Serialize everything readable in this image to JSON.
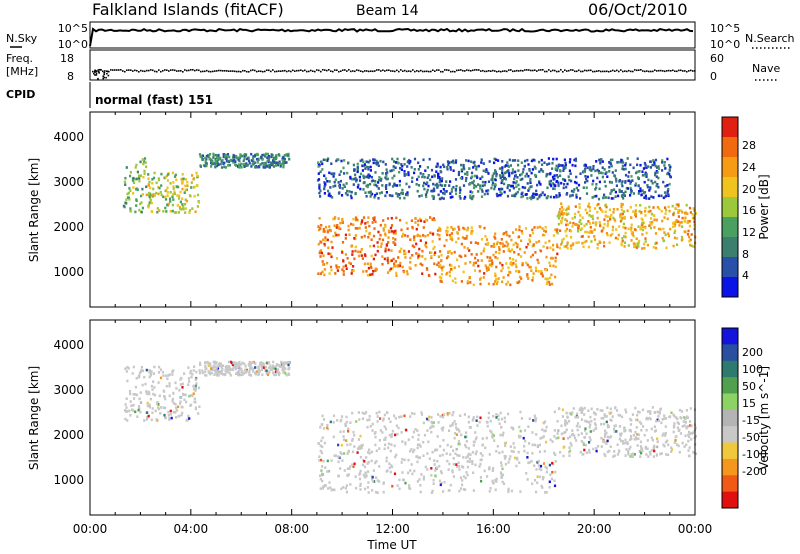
{
  "header": {
    "site": "Falkland Islands (fitACF)",
    "beam": "Beam 14",
    "date": "06/Oct/2010"
  },
  "noise_panel": {
    "left_label": "N.Sky",
    "left_ticks": [
      "10^5",
      "10^0"
    ],
    "right_label": "N.Search",
    "right_ticks": [
      "10^5",
      "10^0"
    ]
  },
  "freq_panel": {
    "left_label_1": "Freq.",
    "left_label_2": "[MHz]",
    "left_ticks": [
      "18",
      "8"
    ],
    "right_label": "Nave",
    "right_ticks": [
      "60",
      "0"
    ]
  },
  "cpid": {
    "label": "CPID",
    "value": "normal (fast) 151"
  },
  "colors": {
    "power_scale": [
      "#0a14e6",
      "#2850a8",
      "#3c7f6e",
      "#4aa060",
      "#9cc83c",
      "#f0c41e",
      "#f59c14",
      "#f06a10",
      "#e02010"
    ],
    "velocity_scale": [
      "#e01010",
      "#f05a14",
      "#f5961e",
      "#f0c83c",
      "#c8c8c8",
      "#b4b4b4",
      "#8cd264",
      "#50a050",
      "#2d7a6e",
      "#284fa0",
      "#1414dc"
    ]
  },
  "chart_data": [
    {
      "type": "heatmap",
      "title": "Power",
      "xlabel": "Time UT",
      "ylabel": "Slant Range [km]",
      "xticks": [
        "00:00",
        "04:00",
        "08:00",
        "12:00",
        "16:00",
        "20:00",
        "00:00"
      ],
      "xlim_hours": [
        0,
        24
      ],
      "yticks": [
        1000,
        2000,
        3000,
        4000
      ],
      "ylim": [
        180,
        4500
      ],
      "colorbar": {
        "label": "Power [dB]",
        "ticks": [
          4,
          8,
          12,
          16,
          20,
          24,
          28
        ],
        "range": [
          0,
          30
        ]
      },
      "echo_regions": [
        {
          "t_start": 1.3,
          "t_end": 2.2,
          "range_low": 2300,
          "range_high": 3500,
          "mean_power": 12
        },
        {
          "t_start": 2.2,
          "t_end": 4.3,
          "range_low": 2300,
          "range_high": 3200,
          "mean_power": 16
        },
        {
          "t_start": 4.3,
          "t_end": 7.9,
          "range_low": 3300,
          "range_high": 3600,
          "mean_power": 8
        },
        {
          "t_start": 9.0,
          "t_end": 13.8,
          "range_low": 900,
          "range_high": 2200,
          "mean_power": 24
        },
        {
          "t_start": 13.8,
          "t_end": 18.5,
          "range_low": 700,
          "range_high": 2000,
          "mean_power": 22
        },
        {
          "t_start": 18.5,
          "t_end": 24.0,
          "range_low": 1500,
          "range_high": 2500,
          "mean_power": 20
        },
        {
          "t_start": 9.0,
          "t_end": 23.0,
          "range_low": 2600,
          "range_high": 3500,
          "mean_power": 6
        }
      ]
    },
    {
      "type": "heatmap",
      "title": "Velocity",
      "xlabel": "Time UT",
      "ylabel": "Slant Range [km]",
      "xticks": [
        "00:00",
        "04:00",
        "08:00",
        "12:00",
        "16:00",
        "20:00",
        "00:00"
      ],
      "xlim_hours": [
        0,
        24
      ],
      "yticks": [
        1000,
        2000,
        3000,
        4000
      ],
      "ylim": [
        180,
        4500
      ],
      "colorbar": {
        "label": "Velocity [m s^-1]",
        "ticks": [
          200,
          100,
          50,
          15,
          -15,
          -50,
          -100,
          -200
        ],
        "range": [
          -250,
          250
        ]
      },
      "echo_regions": [
        {
          "t_start": 1.3,
          "t_end": 4.3,
          "range_low": 2300,
          "range_high": 3500,
          "mean_velocity": 0
        },
        {
          "t_start": 4.3,
          "t_end": 7.9,
          "range_low": 3300,
          "range_high": 3600,
          "mean_velocity": 0
        },
        {
          "t_start": 9.0,
          "t_end": 18.5,
          "range_low": 700,
          "range_high": 2500,
          "mean_velocity": 0
        },
        {
          "t_start": 18.5,
          "t_end": 24.0,
          "range_low": 1500,
          "range_high": 2600,
          "mean_velocity": -10
        }
      ]
    }
  ]
}
